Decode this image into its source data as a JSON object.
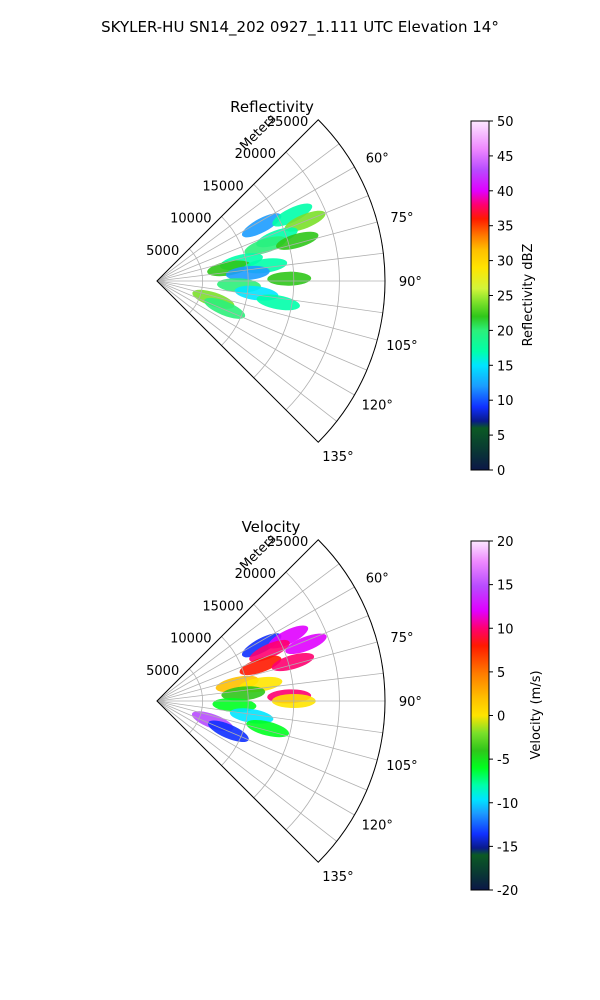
{
  "figure_title": "SKYLER-HU  SN14_202  0927_1.111 UTC Elevation 14°",
  "chart_data": [
    {
      "type": "polar-sector",
      "title": "Reflectivity",
      "range_label": "Meters",
      "range_ticks": [
        5000,
        10000,
        15000,
        20000,
        25000
      ],
      "range_max": 25000,
      "azimuth_ticks": [
        "60°",
        "75°",
        "90°",
        "105°",
        "120°",
        "135°"
      ],
      "azimuth_tick_values": [
        60,
        75,
        90,
        105,
        120,
        135
      ],
      "azimuth_range": [
        45,
        135
      ],
      "radial_grid": [
        45,
        53,
        60,
        68,
        75,
        83,
        90,
        98,
        105,
        113,
        120,
        128,
        135
      ],
      "colorbar": {
        "label": "Reflectivity dBZ",
        "min": 0,
        "max": 50,
        "ticks": [
          0,
          5,
          10,
          15,
          20,
          25,
          30,
          35,
          40,
          45,
          50
        ],
        "colormap": "pyart_HomeyerRainbow"
      },
      "echoes": [
        {
          "azimuth": 62,
          "range": 13000,
          "value": 14
        },
        {
          "azimuth": 64,
          "range": 16500,
          "value": 18
        },
        {
          "azimuth": 68,
          "range": 17500,
          "value": 24
        },
        {
          "azimuth": 70,
          "range": 14000,
          "value": 19
        },
        {
          "azimuth": 72,
          "range": 12500,
          "value": 21
        },
        {
          "azimuth": 74,
          "range": 16000,
          "value": 23
        },
        {
          "azimuth": 77,
          "range": 9500,
          "value": 17
        },
        {
          "azimuth": 80,
          "range": 8000,
          "value": 22
        },
        {
          "azimuth": 82,
          "range": 12000,
          "value": 19
        },
        {
          "azimuth": 85,
          "range": 10000,
          "value": 12
        },
        {
          "azimuth": 89,
          "range": 14500,
          "value": 23
        },
        {
          "azimuth": 93,
          "range": 9000,
          "value": 20
        },
        {
          "azimuth": 97,
          "range": 11000,
          "value": 16
        },
        {
          "azimuth": 100,
          "range": 13500,
          "value": 18
        },
        {
          "azimuth": 108,
          "range": 6500,
          "value": 24
        },
        {
          "azimuth": 112,
          "range": 8000,
          "value": 21
        }
      ]
    },
    {
      "type": "polar-sector",
      "title": "Velocity",
      "range_label": "Meters",
      "range_ticks": [
        5000,
        10000,
        15000,
        20000,
        25000
      ],
      "range_max": 25000,
      "azimuth_ticks": [
        "60°",
        "75°",
        "90°",
        "105°",
        "120°",
        "135°"
      ],
      "azimuth_tick_values": [
        60,
        75,
        90,
        105,
        120,
        135
      ],
      "azimuth_range": [
        45,
        135
      ],
      "radial_grid": [
        45,
        53,
        60,
        68,
        75,
        83,
        90,
        98,
        105,
        113,
        120,
        128,
        135
      ],
      "colorbar": {
        "label": "Velocity (m/s)",
        "min": -20,
        "max": 20,
        "ticks": [
          -20,
          -15,
          -10,
          -5,
          0,
          5,
          10,
          15,
          20
        ],
        "colormap": "pyart_BuDRd18"
      },
      "echoes": [
        {
          "azimuth": 62,
          "range": 13000,
          "value": -13
        },
        {
          "azimuth": 64,
          "range": 16000,
          "value": 14
        },
        {
          "azimuth": 66,
          "range": 13500,
          "value": 11
        },
        {
          "azimuth": 69,
          "range": 17500,
          "value": 13
        },
        {
          "azimuth": 71,
          "range": 12000,
          "value": 8
        },
        {
          "azimuth": 74,
          "range": 15500,
          "value": 10
        },
        {
          "azimuth": 78,
          "range": 9000,
          "value": 4
        },
        {
          "azimuth": 81,
          "range": 11500,
          "value": 1
        },
        {
          "azimuth": 85,
          "range": 9500,
          "value": -3
        },
        {
          "azimuth": 88,
          "range": 14500,
          "value": 10
        },
        {
          "azimuth": 90,
          "range": 15000,
          "value": 1
        },
        {
          "azimuth": 93,
          "range": 8500,
          "value": -6
        },
        {
          "azimuth": 99,
          "range": 10500,
          "value": -9
        },
        {
          "azimuth": 104,
          "range": 12500,
          "value": -5
        },
        {
          "azimuth": 110,
          "range": 6500,
          "value": 15
        },
        {
          "azimuth": 113,
          "range": 8500,
          "value": -13
        }
      ]
    }
  ]
}
